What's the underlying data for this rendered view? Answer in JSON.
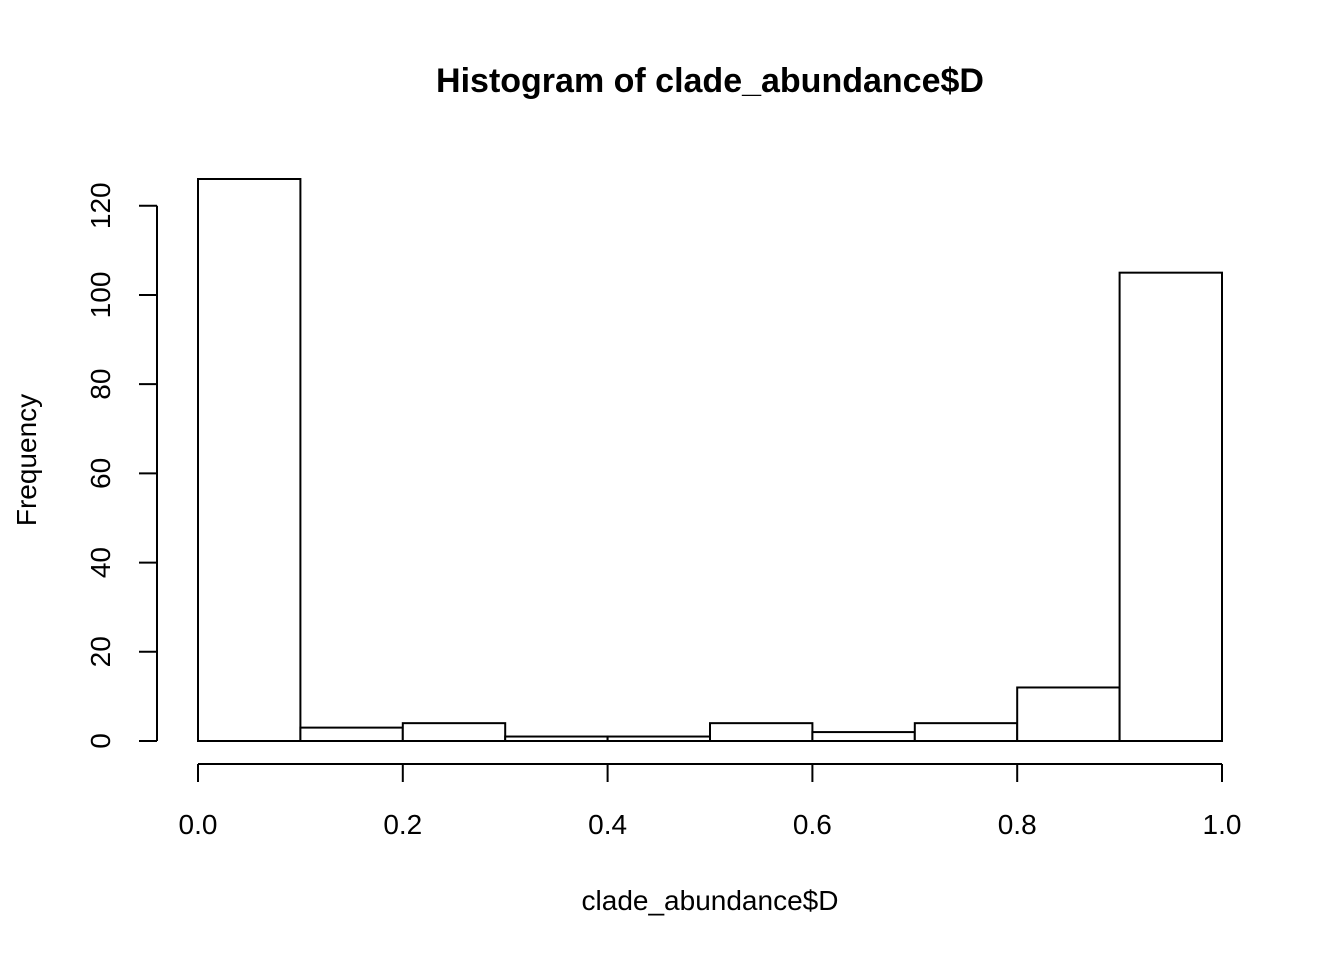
{
  "chart_data": {
    "type": "bar",
    "title": "Histogram of clade_abundance$D",
    "xlabel": "clade_abundance$D",
    "ylabel": "Frequency",
    "bins": [
      {
        "start": 0.0,
        "end": 0.1,
        "count": 126
      },
      {
        "start": 0.1,
        "end": 0.2,
        "count": 3
      },
      {
        "start": 0.2,
        "end": 0.3,
        "count": 4
      },
      {
        "start": 0.3,
        "end": 0.4,
        "count": 1
      },
      {
        "start": 0.4,
        "end": 0.5,
        "count": 1
      },
      {
        "start": 0.5,
        "end": 0.6,
        "count": 4
      },
      {
        "start": 0.6,
        "end": 0.7,
        "count": 2
      },
      {
        "start": 0.7,
        "end": 0.8,
        "count": 4
      },
      {
        "start": 0.8,
        "end": 0.9,
        "count": 12
      },
      {
        "start": 0.9,
        "end": 1.0,
        "count": 105
      }
    ],
    "xlim": [
      0,
      1
    ],
    "ylim": [
      0,
      126
    ],
    "x_ticks": [
      0.0,
      0.2,
      0.4,
      0.6,
      0.8,
      1.0
    ],
    "x_tick_labels": [
      "0.0",
      "0.2",
      "0.4",
      "0.6",
      "0.8",
      "1.0"
    ],
    "y_ticks": [
      0,
      20,
      40,
      60,
      80,
      100,
      120
    ],
    "y_tick_labels": [
      "0",
      "20",
      "40",
      "60",
      "80",
      "100",
      "120"
    ],
    "grid": false,
    "bar_fill": "#ffffff",
    "bar_stroke": "#000000"
  }
}
